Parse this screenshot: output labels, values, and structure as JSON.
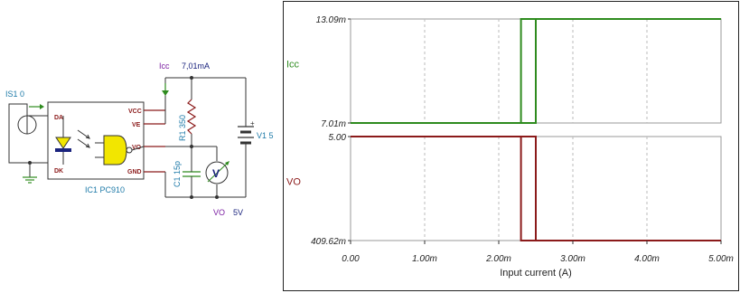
{
  "schematic": {
    "source_label": "IS1 0",
    "ic_label": "IC1 PC910",
    "pins": {
      "da": "DA",
      "dk": "DK",
      "vcc": "VCC",
      "ve": "VE",
      "vo": "VO",
      "gnd": "GND"
    },
    "icc_name": "Icc",
    "icc_value": "7,01mA",
    "resistor_label": "R1 350",
    "capacitor_label": "C1 15p",
    "battery_label": "V1 5",
    "battery_plus": "+",
    "vo_name": "VO",
    "vo_value": "5V",
    "voltmeter_symbol": "V"
  },
  "chart_data": {
    "type": "line",
    "xlabel": "Input current (A)",
    "x_ticks": [
      "0.00",
      "1.00m",
      "2.00m",
      "3.00m",
      "4.00m",
      "5.00m"
    ],
    "xlim": [
      0,
      0.005
    ],
    "grid": true,
    "panels": [
      {
        "name": "Icc",
        "color": "#2e8b1e",
        "ylim": [
          0.00701,
          0.01309
        ],
        "y_ticks": [
          "13.09m",
          "7.01m"
        ],
        "series": [
          {
            "x": [
              0,
              0.0023,
              0.0023,
              0.005
            ],
            "y": [
              0.00701,
              0.00701,
              0.01309,
              0.01309
            ]
          },
          {
            "x": [
              0,
              0.0025,
              0.0025,
              0.005
            ],
            "y": [
              0.00701,
              0.00701,
              0.01309,
              0.01309
            ]
          }
        ]
      },
      {
        "name": "VO",
        "color": "#8b1a1a",
        "ylim": [
          0.40962,
          5.0
        ],
        "y_ticks": [
          "5.00",
          "409.62m"
        ],
        "series": [
          {
            "x": [
              0,
              0.0023,
              0.0023,
              0.005
            ],
            "y": [
              5.0,
              5.0,
              0.40962,
              0.40962
            ]
          },
          {
            "x": [
              0,
              0.0025,
              0.0025,
              0.005
            ],
            "y": [
              5.0,
              5.0,
              0.40962,
              0.40962
            ]
          }
        ]
      }
    ]
  }
}
